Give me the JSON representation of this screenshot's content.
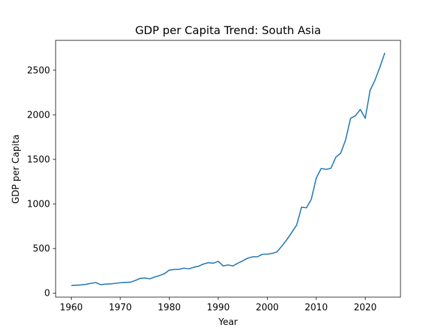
{
  "chart_data": {
    "type": "line",
    "title": "GDP per Capita Trend: South Asia",
    "xlabel": "Year",
    "ylabel": "GDP per Capita",
    "xlim": [
      1956.8,
      2027.2
    ],
    "ylim": [
      -45,
      2835
    ],
    "xticks": [
      1960,
      1970,
      1980,
      1990,
      2000,
      2010,
      2020
    ],
    "yticks": [
      0,
      500,
      1000,
      1500,
      2000,
      2500
    ],
    "grid": false,
    "line_color": "#1f77b4",
    "series": [
      {
        "x": [
          1960,
          1961,
          1962,
          1963,
          1964,
          1965,
          1966,
          1967,
          1968,
          1969,
          1970,
          1971,
          1972,
          1973,
          1974,
          1975,
          1976,
          1977,
          1978,
          1979,
          1980,
          1981,
          1982,
          1983,
          1984,
          1985,
          1986,
          1987,
          1988,
          1989,
          1990,
          1991,
          1992,
          1993,
          1994,
          1995,
          1996,
          1997,
          1998,
          1999,
          2000,
          2001,
          2002,
          2003,
          2004,
          2005,
          2006,
          2007,
          2008,
          2009,
          2010,
          2011,
          2012,
          2013,
          2014,
          2015,
          2016,
          2017,
          2018,
          2019,
          2020,
          2021,
          2022,
          2023,
          2024
        ],
        "values": [
          85,
          88,
          92,
          98,
          110,
          118,
          95,
          101,
          104,
          110,
          116,
          120,
          122,
          140,
          164,
          170,
          160,
          180,
          197,
          217,
          258,
          265,
          267,
          280,
          272,
          290,
          302,
          327,
          342,
          335,
          357,
          305,
          316,
          305,
          336,
          362,
          392,
          407,
          408,
          435,
          437,
          445,
          462,
          530,
          600,
          680,
          763,
          963,
          957,
          1053,
          1290,
          1398,
          1388,
          1400,
          1525,
          1570,
          1720,
          1960,
          1990,
          2060,
          1960,
          2275,
          2390,
          2535,
          2695
        ]
      }
    ]
  }
}
